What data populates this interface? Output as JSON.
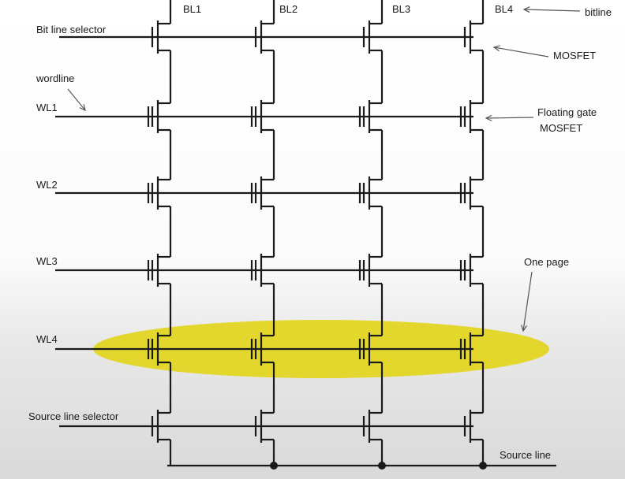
{
  "bitlines": [
    "BL1",
    "BL2",
    "BL3",
    "BL4"
  ],
  "row_labels": {
    "bit_line_selector": "Bit line selector",
    "wordline": "wordline",
    "wl1": "WL1",
    "wl2": "WL2",
    "wl3": "WL3",
    "wl4": "WL4",
    "source_line_selector": "Source line selector",
    "source_line": "Source line"
  },
  "annotations": {
    "bitline": "bitline",
    "mosfet": "MOSFET",
    "floating_gate_line1": "Floating gate",
    "floating_gate_line2": "MOSFET",
    "one_page": "One page"
  },
  "colors": {
    "wire": "#1a1a1a",
    "page_highlight": "#e2d51a",
    "annotation_arrow": "#555555"
  }
}
